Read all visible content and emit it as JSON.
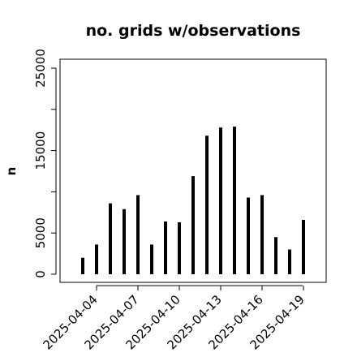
{
  "chart_data": {
    "type": "bar",
    "title": "no. grids w/observations",
    "xlabel": "",
    "ylabel": "n",
    "x": [
      "2025-04-03",
      "2025-04-04",
      "2025-04-05",
      "2025-04-06",
      "2025-04-07",
      "2025-04-08",
      "2025-04-09",
      "2025-04-10",
      "2025-04-11",
      "2025-04-12",
      "2025-04-13",
      "2025-04-14",
      "2025-04-15",
      "2025-04-16",
      "2025-04-17",
      "2025-04-18",
      "2025-04-19"
    ],
    "values": [
      2000,
      3600,
      8600,
      7900,
      9600,
      3600,
      6400,
      6300,
      11900,
      16800,
      17800,
      17900,
      9300,
      9600,
      4500,
      3000,
      6600
    ],
    "xticks": [
      {
        "label": "2025-04-04",
        "color": "#000000"
      },
      {
        "label": "2025-04-07",
        "color": "#000000"
      },
      {
        "label": "2025-04-10",
        "color": "#228B22"
      },
      {
        "label": "2025-04-13",
        "color": "#000000"
      },
      {
        "label": "2025-04-16",
        "color": "#000000"
      },
      {
        "label": "2025-04-19",
        "color": "#000000"
      }
    ],
    "yticks": [
      0,
      5000,
      15000,
      25000
    ],
    "ylim": [
      0,
      26000
    ],
    "grid": false,
    "legend": "none",
    "bar_color": "#000000"
  }
}
